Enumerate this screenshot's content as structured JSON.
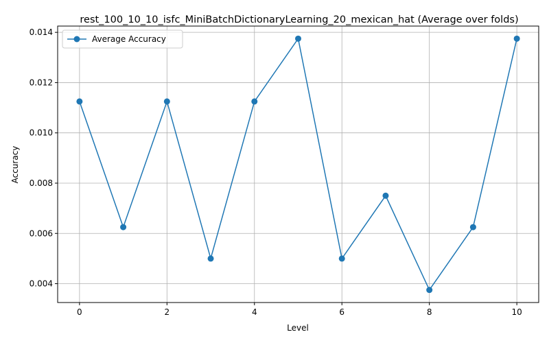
{
  "chart_data": {
    "type": "line",
    "title": "rest_100_10_10_isfc_MiniBatchDictionaryLearning_20_mexican_hat (Average over folds)",
    "xlabel": "Level",
    "ylabel": "Accuracy",
    "x": [
      0,
      1,
      2,
      3,
      4,
      5,
      6,
      7,
      8,
      9,
      10
    ],
    "series": [
      {
        "name": "Average Accuracy",
        "color": "#1f77b4",
        "marker": "circle",
        "values": [
          0.01125,
          0.00625,
          0.01125,
          0.005,
          0.01125,
          0.01375,
          0.005,
          0.0075,
          0.00375,
          0.00625,
          0.01375
        ]
      }
    ],
    "xticks": [
      0,
      2,
      4,
      6,
      8,
      10
    ],
    "xtick_labels": [
      "0",
      "2",
      "4",
      "6",
      "8",
      "10"
    ],
    "yticks": [
      0.004,
      0.006,
      0.008,
      0.01,
      0.012,
      0.014
    ],
    "ytick_labels": [
      "0.004",
      "0.006",
      "0.008",
      "0.010",
      "0.012",
      "0.014"
    ],
    "xlim": [
      -0.5,
      10.5
    ],
    "ylim": [
      0.00325,
      0.01425
    ],
    "grid": true,
    "legend_position": "upper-left"
  }
}
